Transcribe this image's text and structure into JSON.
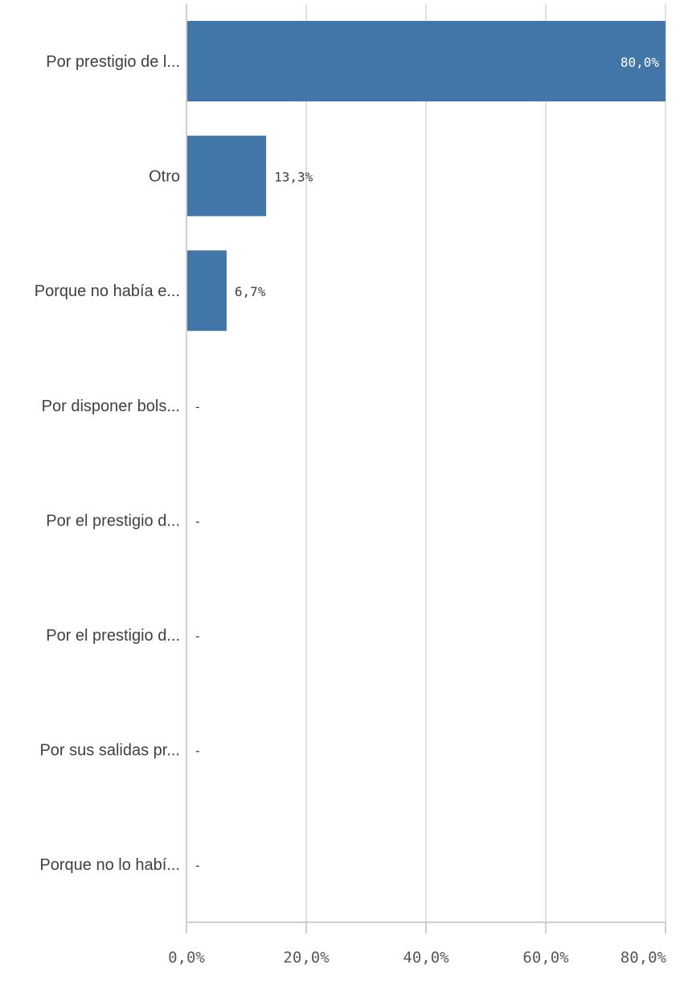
{
  "chart_data": {
    "type": "bar",
    "orientation": "horizontal",
    "categories": [
      "Por prestigio de l...",
      "Otro",
      "Porque no había e...",
      "Por disponer bols...",
      "Por el prestigio d...",
      "Por el prestigio d...",
      "Por sus salidas pr...",
      "Porque no lo habí..."
    ],
    "values": [
      80.0,
      13.3,
      6.7,
      null,
      null,
      null,
      null,
      null
    ],
    "data_labels": [
      "80,0%",
      "13,3%",
      "6,7%",
      "-",
      "-",
      "-",
      "-",
      "-"
    ],
    "xlim": [
      0,
      80
    ],
    "x_ticks": [
      0,
      20,
      40,
      60,
      80
    ],
    "x_tick_labels": [
      "0,0%",
      "20,0%",
      "40,0%",
      "60,0%",
      "80,0%"
    ],
    "grid": true,
    "title": "",
    "xlabel": "",
    "ylabel": "",
    "colors": {
      "bar": "#4275a8",
      "grid": "#cccccc",
      "axis": "#bfbfbf",
      "category_text": "#404040",
      "tick_text": "#595959",
      "label_text": "#404040",
      "inside_label_text": "#ffffff"
    }
  }
}
